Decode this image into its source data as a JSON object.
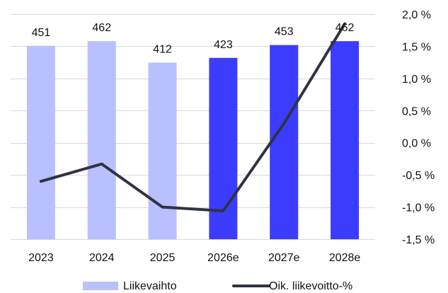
{
  "chart_data": {
    "type": "bar",
    "categories": [
      "2023",
      "2024",
      "2025",
      "2026e",
      "2027e",
      "2028e"
    ],
    "series": [
      {
        "name": "Liikevaihto",
        "type": "bar",
        "axis": "left",
        "values": [
          451,
          462,
          412,
          423,
          453,
          462
        ],
        "data_labels": [
          "451",
          "462",
          "412",
          "423",
          "453",
          "462"
        ],
        "colors": [
          "#b8c0ff",
          "#b8c0ff",
          "#b8c0ff",
          "#3c3cff",
          "#3c3cff",
          "#3c3cff"
        ]
      },
      {
        "name": "Oik. liikevoitto-%",
        "type": "line",
        "axis": "right",
        "values": [
          -0.6,
          -0.33,
          -1.0,
          -1.06,
          0.3,
          1.85
        ],
        "color": "#2f3440"
      }
    ],
    "y_left": {
      "range": [
        0,
        525
      ],
      "shown": false
    },
    "y_right": {
      "range": [
        -1.5,
        2.0
      ],
      "ticks": [
        2.0,
        1.5,
        1.0,
        0.5,
        0.0,
        -0.5,
        -1.0,
        -1.5
      ],
      "tick_labels": [
        "2,0 %",
        "1,5 %",
        "1,0 %",
        "0,5 %",
        "0,0 %",
        "-0,5 %",
        "-1,0 %",
        "-1,5 %"
      ]
    },
    "grid": true,
    "legend": {
      "position": "bottom",
      "entries": [
        "Liikevaihto",
        "Oik. liikevoitto-%"
      ]
    },
    "title": "",
    "xlabel": "",
    "ylabel": ""
  }
}
